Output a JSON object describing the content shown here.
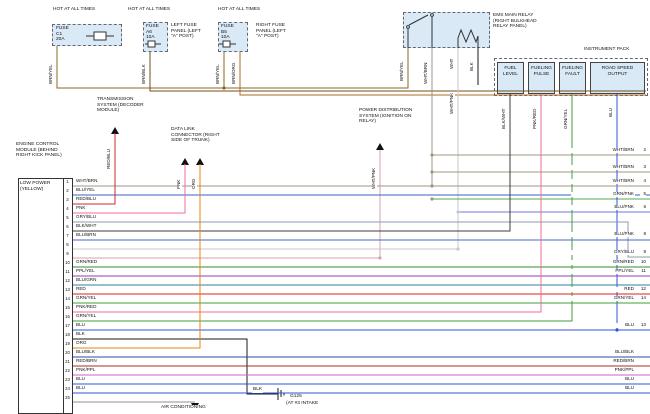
{
  "wire_colors": {
    "BRN/YEL": "#8a6a1f",
    "BRN/BLK": "#6d4f1e",
    "BRN/ORG": "#b06a20",
    "WHT/BRN": "#a09483",
    "WHT": "#c8c8c8",
    "BLK": "#1a1a1a",
    "WHT/PNK": "#d9a0ad",
    "RED/BLU": "#cf2a2a",
    "PNK": "#f06ea0",
    "ORG": "#e8830c",
    "BLU/YEL": "#3b62c9",
    "GRY/BLU": "#8d9bb0",
    "BLK/WHT": "#3c3c3c",
    "BLU/BRN": "#4a6ab8",
    "GRN/RED": "#2f8f2f",
    "PPL/YEL": "#8d3fb3",
    "BLU/GRN": "#2e7fae",
    "RED": "#e01f1f",
    "GRN/YEL": "#3f9e3f",
    "PNK/RED": "#ef6f8f",
    "GRN/PNK": "#55a855",
    "BLU/PNK": "#6b79dd",
    "BLU": "#2f55e0",
    "BLU/BLK": "#2c49a8",
    "RED/BRN": "#a23322",
    "PNK/PPL": "#d161c4"
  },
  "top": {
    "hot_labels": [
      "HOT AT ALL TIMES",
      "HOT AT ALL TIMES",
      "HOT AT ALL TIMES"
    ],
    "fuses": [
      {
        "name": "FUSE",
        "id": "C1",
        "amps": "20A"
      },
      {
        "name": "FUSE",
        "id": "A6",
        "amps": "10A",
        "panel": "LEFT FUSE PANEL (LEFT \"A\" POST)"
      },
      {
        "name": "FUSE",
        "id": "B5",
        "amps": "10A",
        "panel": "RIGHT FUSE PANEL (LEFT \"A\" POST)"
      }
    ],
    "relay_label": "EMS MAIN RELAY (RIGHT BULKHEAD RELAY PANEL)",
    "instrument_pack_label": "INSTRUMENT PACK",
    "instrument_boxes": [
      "FUEL LEVEL",
      "FUELING PULSE",
      "FUELING FAULT",
      "ROAD SPEED OUTPUT"
    ]
  },
  "modules": {
    "transmission": "TRANSMISSION SYSTEM (DECODER MODULE)",
    "data_link": "DATA LINK CONNECTOR (RIGHT SIDE OF TRUNK)",
    "power_distribution": "POWER DISTRIBUTION SYSTEM (IGNITION ON RELAY)",
    "air_conditioning": "AIR CONDITIONING"
  },
  "ground": {
    "wire": "BLK",
    "name": "G125",
    "location": "(AT #3 INTAKE"
  },
  "ecm": {
    "title": "ENGINE CONTROL MODULE (BEHIND RIGHT KICK PANEL)",
    "power_label": "LOW POWER (YELLOW)",
    "pins": [
      {
        "n": "1",
        "wire": "WHT/BRN"
      },
      {
        "n": "2",
        "wire": "BLU/YEL"
      },
      {
        "n": "3",
        "wire": "RED/BLU"
      },
      {
        "n": "4",
        "wire": "PNK"
      },
      {
        "n": "5",
        "wire": "GRY/BLU"
      },
      {
        "n": "6",
        "wire": "BLK/WHT"
      },
      {
        "n": "7",
        "wire": "BLU/BRN"
      },
      {
        "n": "8",
        "wire": ""
      },
      {
        "n": "9",
        "wire": ""
      },
      {
        "n": "10",
        "wire": "GRN/RED"
      },
      {
        "n": "11",
        "wire": "PPL/YEL"
      },
      {
        "n": "12",
        "wire": "BLU/GRN"
      },
      {
        "n": "13",
        "wire": "RED"
      },
      {
        "n": "14",
        "wire": "GRN/YEL"
      },
      {
        "n": "15",
        "wire": "PNK/RED"
      },
      {
        "n": "16",
        "wire": "GRN/YEL"
      },
      {
        "n": "17",
        "wire": "BLU"
      },
      {
        "n": "18",
        "wire": "BLK"
      },
      {
        "n": "19",
        "wire": "ORG"
      },
      {
        "n": "20",
        "wire": "BLU/BLK"
      },
      {
        "n": "21",
        "wire": "RED/BRN"
      },
      {
        "n": "22",
        "wire": "PNK/PPL"
      },
      {
        "n": "23",
        "wire": "BLU"
      },
      {
        "n": "24",
        "wire": "BLU"
      },
      {
        "n": "25",
        "wire": ""
      }
    ]
  },
  "vertical_wire_labels": [
    "BRN/YEL",
    "BRN/BLK",
    "BRN/YEL",
    "BRN/ORG",
    "BRN/YEL",
    "WHT/BRN",
    "WHT",
    "BLK",
    "WHT/PNK",
    "WHT/PNK",
    "RED/BLU",
    "PNK",
    "ORG",
    "BLK/WHT",
    "PNK/RED",
    "GRN/YEL",
    "BLU"
  ],
  "right_labels": [
    {
      "label": "WHT/BRN",
      "num": "2"
    },
    {
      "label": "WHT/BRN",
      "num": "3"
    },
    {
      "label": "WHT/BRN",
      "num": "4"
    },
    {
      "label": "GRN/PNK",
      "num": "5"
    },
    {
      "label": "BLU/PNK",
      "num": "6"
    },
    {
      "label": "BLU/PNK",
      "num": "8"
    },
    {
      "label": "GRY/BLU",
      "num": "9"
    },
    {
      "label": "GRN/RED",
      "num": "10"
    },
    {
      "label": "PPL/YEL",
      "num": "11"
    },
    {
      "label": "RED",
      "num": "12"
    },
    {
      "label": "GRN/YEL",
      "num": "14"
    },
    {
      "label": "BLU",
      "num": "13"
    },
    {
      "label": "BLU/BLK",
      "num": ""
    },
    {
      "label": "RED/BRN",
      "num": ""
    },
    {
      "label": "PNK/PPL",
      "num": ""
    },
    {
      "label": "BLU",
      "num": ""
    },
    {
      "label": "BLU",
      "num": ""
    }
  ]
}
